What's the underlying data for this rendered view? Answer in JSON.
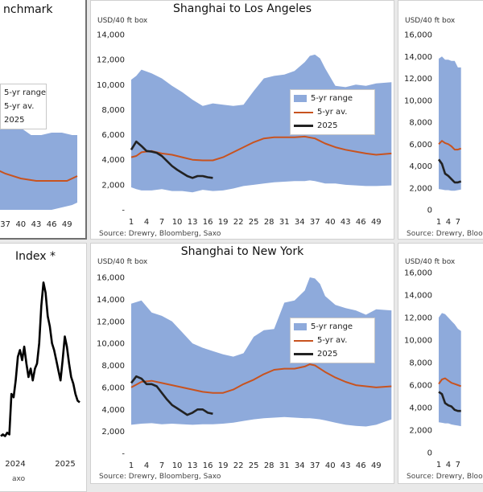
{
  "colors": {
    "range_fill": "#8eaadb",
    "avg_line": "#c8531f",
    "current_line": "#222222",
    "index_line": "#000000"
  },
  "panels": {
    "benchmark": {
      "title": "nchmark",
      "legend": [
        "5-yr range",
        "5-yr av.",
        "2025"
      ],
      "x_tick_labels": [
        "37",
        "40",
        "43",
        "46",
        "49"
      ]
    },
    "sha_la": {
      "title": "Shanghai to Los Angeles",
      "unit": "USD/40 ft box",
      "source": "Source: Drewry, Bloomberg, Saxo",
      "legend": [
        "5-yr range",
        "5-yr av.",
        "2025"
      ]
    },
    "right_top": {
      "unit": "USD/40 ft box",
      "source": "Source: Drewry, Bloomberg, Saxo"
    },
    "index": {
      "title": "Index *",
      "source": "axo",
      "x_tick_labels": [
        "2024",
        "2025"
      ]
    },
    "sha_ny": {
      "title": "Shanghai to New York",
      "unit": "USD/40 ft box",
      "source": "Source: Drewry, Bloomberg, Saxo",
      "legend": [
        "5-yr range",
        "5-yr av.",
        "2025"
      ]
    },
    "right_bottom": {
      "unit": "USD/40 ft box",
      "source": "Source: Drewry, Bloomberg, Saxo"
    }
  },
  "chart_data": [
    {
      "id": "sha_la",
      "type": "area",
      "title": "Shanghai to Los Angeles",
      "ylabel": "USD/40 ft box",
      "ylim": [
        0,
        14000
      ],
      "y_ticks": [
        0,
        2000,
        4000,
        6000,
        8000,
        10000,
        12000,
        14000
      ],
      "y_tick_labels": [
        "-",
        "2,000",
        "4,000",
        "6,000",
        "8,000",
        "10,000",
        "12,000",
        "14,000"
      ],
      "xlim": [
        1,
        52
      ],
      "x_ticks": [
        1,
        4,
        7,
        10,
        13,
        16,
        19,
        22,
        25,
        28,
        31,
        34,
        37,
        40,
        43,
        46,
        49
      ],
      "legend": "top-right",
      "grid": false,
      "range_x": [
        1,
        2,
        3,
        5,
        7,
        9,
        11,
        13,
        15,
        17,
        19,
        21,
        23,
        25,
        27,
        29,
        31,
        33,
        35,
        36,
        37,
        38,
        39,
        41,
        43,
        45,
        47,
        49,
        52
      ],
      "range_high": [
        10400,
        10700,
        11200,
        10900,
        10500,
        9900,
        9400,
        8800,
        8300,
        8500,
        8400,
        8300,
        8400,
        9500,
        10500,
        10700,
        10800,
        11100,
        11800,
        12300,
        12400,
        12100,
        11300,
        9900,
        9800,
        10000,
        9900,
        10100,
        10200
      ],
      "range_low": [
        1800,
        1650,
        1550,
        1550,
        1650,
        1500,
        1500,
        1400,
        1600,
        1500,
        1550,
        1700,
        1900,
        2000,
        2100,
        2200,
        2250,
        2300,
        2300,
        2350,
        2300,
        2200,
        2100,
        2100,
        2000,
        1950,
        1900,
        1900,
        1950
      ],
      "series": [
        {
          "name": "5-yr av.",
          "x": [
            1,
            2,
            3,
            5,
            7,
            9,
            11,
            13,
            15,
            17,
            19,
            21,
            23,
            25,
            27,
            29,
            31,
            33,
            35,
            37,
            39,
            41,
            43,
            45,
            47,
            49,
            52
          ],
          "values": [
            4200,
            4300,
            4600,
            4700,
            4500,
            4400,
            4200,
            4000,
            3950,
            3950,
            4200,
            4600,
            5000,
            5400,
            5700,
            5800,
            5800,
            5800,
            5850,
            5700,
            5300,
            5000,
            4800,
            4650,
            4500,
            4400,
            4500
          ]
        },
        {
          "name": "2025",
          "x": [
            1,
            2,
            3,
            4,
            5,
            6,
            7,
            8,
            9,
            10,
            11,
            12,
            13,
            14,
            15,
            16,
            17
          ],
          "values": [
            4800,
            5450,
            5100,
            4700,
            4650,
            4550,
            4300,
            3900,
            3500,
            3200,
            2950,
            2700,
            2550,
            2700,
            2700,
            2600,
            2550
          ]
        }
      ]
    },
    {
      "id": "sha_ny",
      "type": "area",
      "title": "Shanghai to New York",
      "ylabel": "USD/40 ft box",
      "ylim": [
        0,
        16000
      ],
      "y_ticks": [
        0,
        2000,
        4000,
        6000,
        8000,
        10000,
        12000,
        14000,
        16000
      ],
      "y_tick_labels": [
        "-",
        "2,000",
        "4,000",
        "6,000",
        "8,000",
        "10,000",
        "12,000",
        "14,000",
        "16,000"
      ],
      "xlim": [
        1,
        52
      ],
      "x_ticks": [
        1,
        4,
        7,
        10,
        13,
        16,
        19,
        22,
        25,
        28,
        31,
        34,
        37,
        40,
        43,
        46,
        49
      ],
      "legend": "top-right",
      "grid": false,
      "range_x": [
        1,
        3,
        5,
        7,
        9,
        11,
        13,
        15,
        17,
        19,
        21,
        23,
        25,
        27,
        29,
        31,
        33,
        35,
        36,
        37,
        38,
        39,
        41,
        43,
        45,
        47,
        49,
        52
      ],
      "range_high": [
        13600,
        13900,
        12800,
        12500,
        12000,
        11000,
        10000,
        9600,
        9300,
        9000,
        8800,
        9100,
        10600,
        11200,
        11300,
        13700,
        13900,
        14800,
        16000,
        15900,
        15400,
        14300,
        13500,
        13200,
        13000,
        12600,
        13100,
        13000
      ],
      "range_low": [
        2600,
        2700,
        2750,
        2650,
        2700,
        2650,
        2600,
        2650,
        2650,
        2700,
        2800,
        2950,
        3100,
        3200,
        3250,
        3300,
        3250,
        3200,
        3200,
        3150,
        3100,
        3000,
        2800,
        2600,
        2500,
        2450,
        2600,
        3100
      ],
      "series": [
        {
          "name": "5-yr av.",
          "x": [
            1,
            3,
            5,
            7,
            9,
            11,
            13,
            15,
            17,
            19,
            21,
            23,
            25,
            27,
            29,
            31,
            33,
            35,
            36,
            37,
            39,
            41,
            43,
            45,
            47,
            49,
            52
          ],
          "values": [
            6000,
            6500,
            6600,
            6400,
            6200,
            6000,
            5800,
            5600,
            5500,
            5500,
            5800,
            6300,
            6700,
            7200,
            7600,
            7700,
            7700,
            7900,
            8100,
            8000,
            7400,
            6900,
            6500,
            6200,
            6100,
            6000,
            6100
          ]
        },
        {
          "name": "2025",
          "x": [
            1,
            2,
            3,
            4,
            5,
            6,
            7,
            8,
            9,
            10,
            11,
            12,
            13,
            14,
            15,
            16,
            17
          ],
          "values": [
            6400,
            7000,
            6800,
            6300,
            6300,
            6100,
            5500,
            4900,
            4400,
            4100,
            3800,
            3500,
            3700,
            4000,
            4000,
            3700,
            3600
          ]
        }
      ]
    },
    {
      "id": "benchmark",
      "type": "area",
      "title": "nchmark",
      "x_tick_labels": [
        "37",
        "40",
        "43",
        "46",
        "49"
      ],
      "legend": "top-left",
      "range_x": [
        34,
        36,
        38,
        40,
        42,
        44,
        46,
        48,
        50,
        51
      ],
      "range_high_frac": [
        0.57,
        0.55,
        0.52,
        0.47,
        0.44,
        0.44,
        0.45,
        0.45,
        0.44,
        0.44
      ],
      "range_low_frac": [
        0.13,
        0.13,
        0.13,
        0.13,
        0.13,
        0.13,
        0.13,
        0.14,
        0.15,
        0.16
      ],
      "series": [
        {
          "name": "5-yr av.",
          "x": [
            34,
            37,
            40,
            43,
            46,
            49,
            51
          ],
          "frac": [
            0.31,
            0.28,
            0.26,
            0.25,
            0.25,
            0.25,
            0.27
          ]
        }
      ]
    },
    {
      "id": "right_top",
      "type": "area",
      "y_ticks": [
        0,
        2000,
        4000,
        6000,
        8000,
        10000,
        12000,
        14000,
        16000
      ],
      "y_tick_labels": [
        "0",
        "2,000",
        "4,000",
        "6,000",
        "8,000",
        "10,000",
        "12,000",
        "14,000",
        "16,000"
      ],
      "ylim": [
        0,
        16000
      ],
      "x_ticks": [
        1,
        4,
        7
      ],
      "range_x": [
        1,
        2,
        3,
        4,
        5,
        6,
        7,
        8
      ],
      "range_high": [
        13800,
        14000,
        13700,
        13700,
        13600,
        13600,
        13000,
        13000
      ],
      "range_low": [
        1900,
        1850,
        1800,
        1800,
        1750,
        1750,
        1800,
        1850
      ],
      "series": [
        {
          "name": "5-yr av.",
          "x": [
            1,
            2,
            3,
            4,
            5,
            6,
            7,
            8
          ],
          "values": [
            6000,
            6300,
            6100,
            6000,
            5800,
            5500,
            5500,
            5600
          ]
        },
        {
          "name": "2025",
          "x": [
            1,
            2,
            3,
            4,
            5,
            6,
            7,
            8
          ],
          "values": [
            4600,
            4200,
            3300,
            3100,
            2800,
            2500,
            2500,
            2600
          ]
        }
      ]
    },
    {
      "id": "right_bottom",
      "type": "area",
      "y_ticks": [
        0,
        2000,
        4000,
        6000,
        8000,
        10000,
        12000,
        14000,
        16000
      ],
      "y_tick_labels": [
        "0",
        "2,000",
        "4,000",
        "6,000",
        "8,000",
        "10,000",
        "12,000",
        "14,000",
        "16,000"
      ],
      "ylim": [
        0,
        16000
      ],
      "x_ticks": [
        1,
        4,
        7
      ],
      "range_x": [
        1,
        2,
        3,
        4,
        5,
        6,
        7,
        8
      ],
      "range_high": [
        12000,
        12400,
        12300,
        12000,
        11700,
        11400,
        11000,
        10800
      ],
      "range_low": [
        2700,
        2650,
        2600,
        2600,
        2500,
        2450,
        2400,
        2350
      ],
      "series": [
        {
          "name": "5-yr av.",
          "x": [
            1,
            2,
            3,
            4,
            5,
            6,
            7,
            8
          ],
          "values": [
            6100,
            6500,
            6600,
            6400,
            6200,
            6100,
            6000,
            5900
          ]
        },
        {
          "name": "2025",
          "x": [
            1,
            2,
            3,
            4,
            5,
            6,
            7,
            8
          ],
          "values": [
            5400,
            5200,
            4400,
            4200,
            4100,
            3800,
            3700,
            3700
          ]
        }
      ]
    },
    {
      "id": "index",
      "type": "line",
      "title": "Index *",
      "x_tick_labels": [
        "2024",
        "2025"
      ],
      "series": [
        {
          "name": "",
          "frac": [
            0.05,
            0.06,
            0.05,
            0.07,
            0.06,
            0.3,
            0.28,
            0.38,
            0.52,
            0.56,
            0.5,
            0.58,
            0.48,
            0.4,
            0.45,
            0.38,
            0.45,
            0.48,
            0.6,
            0.82,
            0.96,
            0.9,
            0.76,
            0.7,
            0.6,
            0.56,
            0.5,
            0.44,
            0.38,
            0.5,
            0.64,
            0.58,
            0.48,
            0.4,
            0.36,
            0.3,
            0.26,
            0.25
          ]
        }
      ]
    }
  ]
}
